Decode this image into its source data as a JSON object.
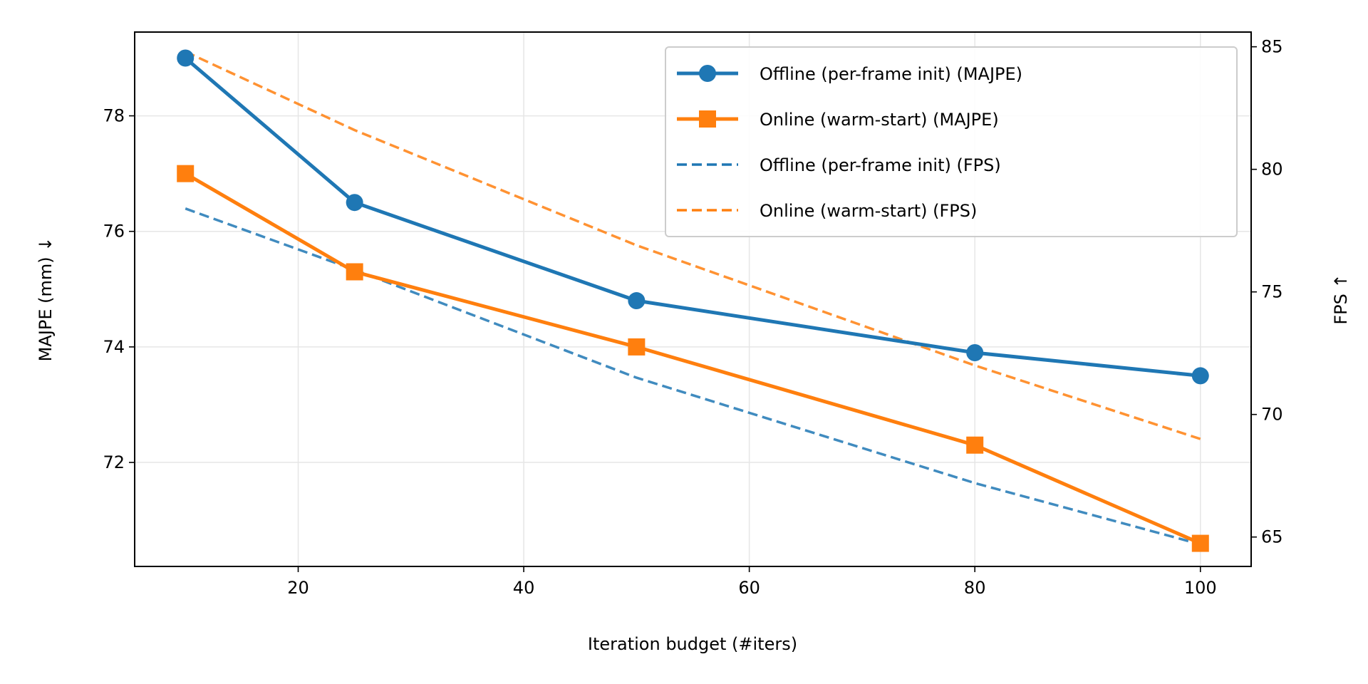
{
  "chart_data": {
    "type": "line",
    "xlabel": "Iteration budget (#iters)",
    "ylabel_left": "MAJPE (mm) ↓",
    "ylabel_right": "FPS ↑",
    "x": [
      10,
      25,
      50,
      80,
      100
    ],
    "xlim": [
      5.5,
      104.5
    ],
    "ylim_left": [
      70.2,
      79.45
    ],
    "ylim_right": [
      63.8,
      85.6
    ],
    "xticks": [
      20,
      40,
      60,
      80,
      100
    ],
    "xtick_labels": [
      "20",
      "40",
      "60",
      "80",
      "100"
    ],
    "yticks_left": [
      72,
      74,
      76,
      78
    ],
    "ytick_labels_left": [
      "72",
      "74",
      "76",
      "78"
    ],
    "yticks_right": [
      65,
      70,
      75,
      80,
      85
    ],
    "ytick_labels_right": [
      "65",
      "70",
      "75",
      "80",
      "85"
    ],
    "grid": true,
    "legend_position": "top-right",
    "series": [
      {
        "name": "Offline (per-frame init) (MAJPE)",
        "axis": "left",
        "style": "solid",
        "marker": "circle",
        "color": "#1f77b4",
        "values": [
          79.0,
          76.5,
          74.8,
          73.9,
          73.5
        ]
      },
      {
        "name": "Online (warm-start) (MAJPE)",
        "axis": "left",
        "style": "solid",
        "marker": "square",
        "color": "#ff7f0e",
        "values": [
          77.0,
          75.3,
          74.0,
          72.3,
          70.6
        ]
      },
      {
        "name": "Offline (per-frame init) (FPS)",
        "axis": "right",
        "style": "dashed",
        "marker": "none",
        "color": "#1f77b4",
        "values": [
          78.4,
          75.9,
          71.5,
          67.2,
          64.7
        ]
      },
      {
        "name": "Online (warm-start) (FPS)",
        "axis": "right",
        "style": "dashed",
        "marker": "none",
        "color": "#ff7f0e",
        "values": [
          84.8,
          81.6,
          76.9,
          72.0,
          69.0
        ]
      }
    ]
  }
}
